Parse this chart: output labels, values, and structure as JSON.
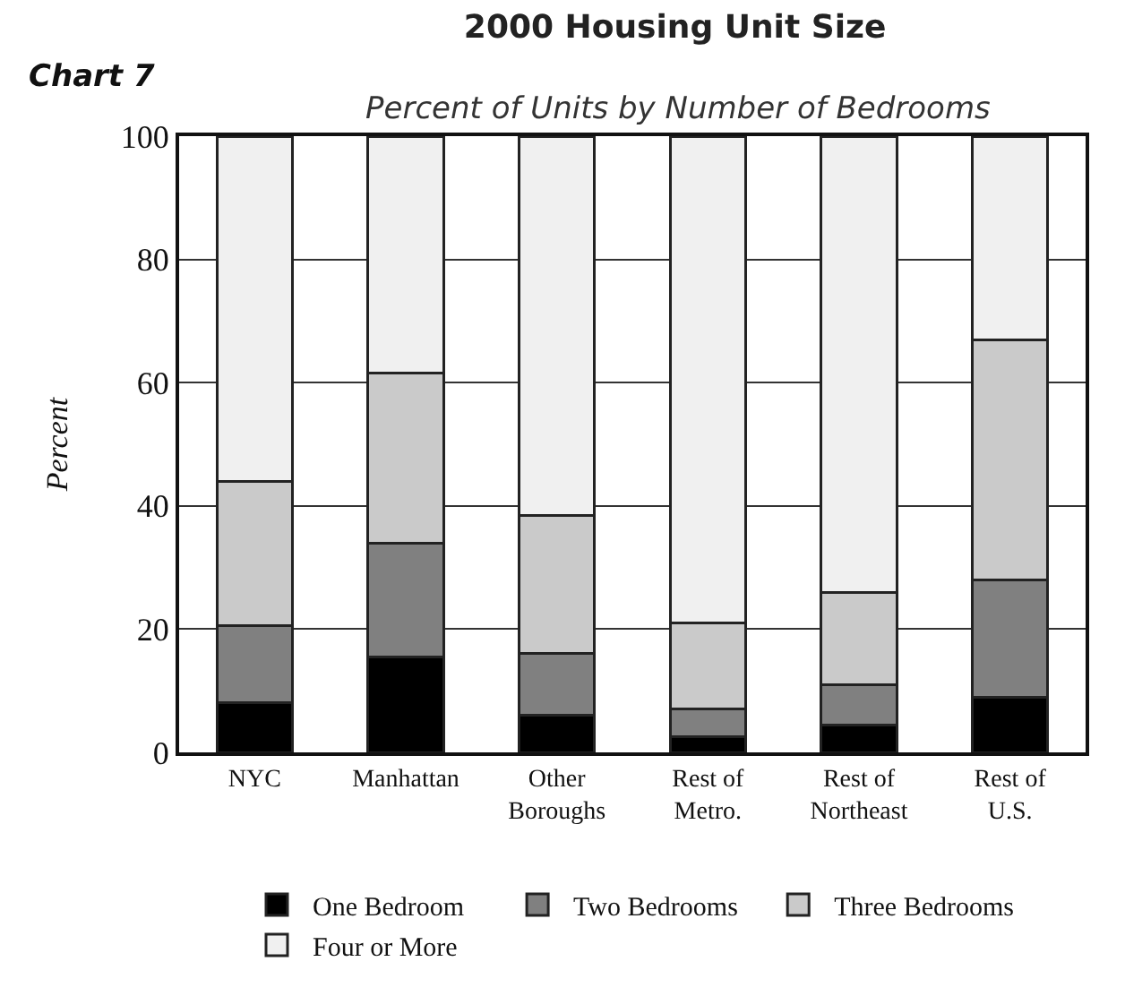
{
  "chart_data": {
    "type": "bar",
    "title": "2000 Housing Unit Size",
    "subtitle": "Percent of Units by Number of Bedrooms",
    "annotations": [
      "Chart 7"
    ],
    "ylabel": "Percent",
    "categories": [
      "NYC",
      "Manhattan",
      "Other Boroughs",
      "Rest of Metro.",
      "Rest of Northeast",
      "Rest of U.S."
    ],
    "stacked": true,
    "series": [
      {
        "name": "One Bedroom",
        "color": "#000000",
        "values": [
          8,
          15.5,
          6,
          2.5,
          4.5,
          9
        ]
      },
      {
        "name": "Two Bedrooms",
        "color": "#808080",
        "values": [
          12.5,
          18.5,
          10,
          4.5,
          6.5,
          19
        ]
      },
      {
        "name": "Three Bedrooms",
        "color": "#cacaca",
        "values": [
          23.5,
          27.5,
          22.5,
          14,
          15,
          39
        ]
      },
      {
        "name": "Four or More",
        "color": "#f0f0f0",
        "values": [
          56,
          38.5,
          61.5,
          79,
          74,
          33
        ]
      }
    ],
    "ylim": [
      0,
      100
    ],
    "yticks": [
      0,
      20,
      40,
      60,
      80,
      100
    ],
    "grid": "y",
    "legend": "bottom"
  }
}
